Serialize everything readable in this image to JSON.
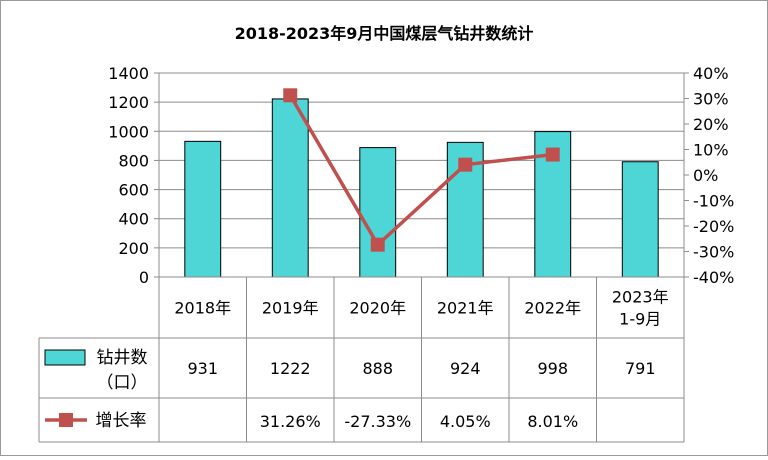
{
  "chart_data": {
    "type": "bar",
    "title": "2018-2023年9月中国煤层气钻井数统计",
    "categories": [
      [
        "2018年"
      ],
      [
        "2019年"
      ],
      [
        "2020年"
      ],
      [
        "2021年"
      ],
      [
        "2022年"
      ],
      [
        "2023年",
        "1-9月"
      ]
    ],
    "series": [
      {
        "name": [
          "钻井数",
          "（口）"
        ],
        "type": "bar",
        "axis": "left",
        "color": "#4ED6D6",
        "values": [
          931,
          1222,
          888,
          924,
          998,
          791
        ],
        "labels": [
          "931",
          "1222",
          "888",
          "924",
          "998",
          "791"
        ]
      },
      {
        "name": [
          "增长率"
        ],
        "type": "line",
        "axis": "right",
        "color": "#C0504D",
        "values": [
          null,
          31.26,
          -27.33,
          4.05,
          8.01,
          null
        ],
        "labels": [
          "",
          "31.26%",
          "-27.33%",
          "4.05%",
          "8.01%",
          ""
        ]
      }
    ],
    "y_left": {
      "min": 0,
      "max": 1400,
      "ticks": [
        0,
        200,
        400,
        600,
        800,
        1000,
        1200,
        1400
      ],
      "tick_labels": [
        "0",
        "200",
        "400",
        "600",
        "800",
        "1000",
        "1200",
        "1400"
      ]
    },
    "y_right": {
      "min": -40,
      "max": 40,
      "ticks": [
        -40,
        -30,
        -20,
        -10,
        0,
        10,
        20,
        30,
        40
      ],
      "tick_labels": [
        "-40%",
        "-30%",
        "-20%",
        "-10%",
        "0%",
        "10%",
        "20%",
        "30%",
        "40%"
      ]
    },
    "grid": true,
    "legend": "data-table"
  }
}
